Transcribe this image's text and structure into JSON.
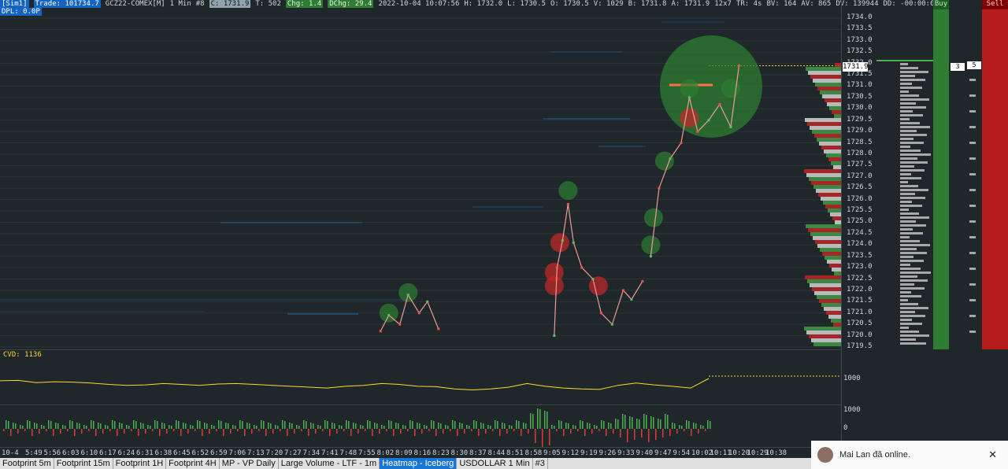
{
  "header": {
    "sim": "[Sim1]",
    "trade": "Trade: 101734.7",
    "symbol": "GCZ22-COMEX[M]",
    "interval": "1 Min",
    "n": "#8",
    "close": "C: 1731.9",
    "t": "T: 502",
    "chg": "Chg: 1.4",
    "dchg": "DChg: 29.4",
    "datetime": "2022-10-04 10:07:56",
    "high": "H: 1732.0",
    "low": "L: 1730.5",
    "open": "O: 1730.5",
    "volume": "V: 1029",
    "bid": "B: 1731.8",
    "ask": "A: 1731.9",
    "range": "12x7",
    "tr": "TR: 4s",
    "bv": "BV: 164",
    "av": "AV: 865",
    "dv": "DV: 139944",
    "dd": "DD: -00:00:00",
    "dpl": "DPL: 0.0P"
  },
  "price_axis": {
    "ticks": [
      "1734.0",
      "1733.5",
      "1733.0",
      "1732.5",
      "1732.0",
      "1731.5",
      "1731.0",
      "1730.5",
      "1730.0",
      "1729.5",
      "1729.0",
      "1728.5",
      "1728.0",
      "1727.5",
      "1727.0",
      "1726.5",
      "1726.0",
      "1725.5",
      "1725.0",
      "1724.5",
      "1724.0",
      "1723.5",
      "1723.0",
      "1722.5",
      "1722.0",
      "1721.5",
      "1721.0",
      "1720.5",
      "1720.0",
      "1719.5"
    ],
    "current": "1731.9"
  },
  "panels": {
    "buy_label": "Buy",
    "sell_label": "Sell",
    "box_a": "3",
    "box_b": "5"
  },
  "cvd": {
    "label": "CVD: 1136",
    "axis_tick": "1000"
  },
  "volume": {
    "axis_top": "1000",
    "axis_zero": "0"
  },
  "time_axis": [
    "10-4",
    "5:49",
    "5:56",
    "6:03",
    "6:10",
    "6:17",
    "6:24",
    "6:31",
    "6:38",
    "6:45",
    "6:52",
    "6:59",
    "7:06",
    "7:13",
    "7:20",
    "7:27",
    "7:34",
    "7:41",
    "7:48",
    "7:55",
    "8:02",
    "8:09",
    "8:16",
    "8:23",
    "8:30",
    "8:37",
    "8:44",
    "8:51",
    "8:58",
    "9:05",
    "9:12",
    "9:19",
    "9:26",
    "9:33",
    "9:40",
    "9:47",
    "9:54",
    "10:02",
    "10:11",
    "10:20",
    "10:29",
    "10:38"
  ],
  "tabs": [
    "Footprint 5m",
    "Footprint 15m",
    "Footprint 1H",
    "Footprint 4H",
    "MP - VP Daily",
    "Large Volume - LTF - 1m",
    "Heatmap - Iceberg",
    "USDOLLAR  1 Min",
    "#3"
  ],
  "active_tab": "Heatmap - Iceberg",
  "toast": {
    "text": "Mai Lan đã online.",
    "close": "✕"
  },
  "colors": {
    "bg": "#1f272b",
    "up": "#4caf50",
    "down": "#e53935",
    "cvd": "#fdd835"
  },
  "chart_data": {
    "type": "line",
    "price_path": [
      {
        "t": "7:55",
        "p": 1720.2
      },
      {
        "t": "7:58",
        "p": 1720.9
      },
      {
        "t": "8:02",
        "p": 1720.5
      },
      {
        "t": "8:05",
        "p": 1721.8
      },
      {
        "t": "8:09",
        "p": 1721.0
      },
      {
        "t": "8:12",
        "p": 1721.5
      },
      {
        "t": "8:16",
        "p": 1720.3
      },
      {
        "t": "8:58",
        "p": 1720.0
      },
      {
        "t": "8:59",
        "p": 1723.0
      },
      {
        "t": "9:01",
        "p": 1724.2
      },
      {
        "t": "9:03",
        "p": 1725.8
      },
      {
        "t": "9:05",
        "p": 1724.1
      },
      {
        "t": "9:08",
        "p": 1723.0
      },
      {
        "t": "9:12",
        "p": 1722.5
      },
      {
        "t": "9:15",
        "p": 1721.0
      },
      {
        "t": "9:19",
        "p": 1720.5
      },
      {
        "t": "9:23",
        "p": 1722.0
      },
      {
        "t": "9:26",
        "p": 1721.6
      },
      {
        "t": "9:30",
        "p": 1722.4
      },
      {
        "t": "9:33",
        "p": 1723.5
      },
      {
        "t": "9:36",
        "p": 1726.5
      },
      {
        "t": "9:40",
        "p": 1727.8
      },
      {
        "t": "9:44",
        "p": 1728.5
      },
      {
        "t": "9:47",
        "p": 1730.5
      },
      {
        "t": "9:50",
        "p": 1729.0
      },
      {
        "t": "9:54",
        "p": 1729.5
      },
      {
        "t": "9:58",
        "p": 1730.2
      },
      {
        "t": "10:02",
        "p": 1729.2
      },
      {
        "t": "10:05",
        "p": 1731.9
      }
    ],
    "cvd_series": [
      200,
      205,
      180,
      190,
      185,
      175,
      160,
      150,
      155,
      170,
      160,
      150,
      165,
      170,
      160,
      150,
      140,
      130,
      120,
      140,
      150,
      170,
      160,
      140,
      135,
      110,
      100,
      110,
      130,
      170,
      140,
      120,
      110,
      105,
      150,
      175,
      155,
      140,
      120,
      1136
    ],
    "bubbles": [
      {
        "t": "7:58",
        "p": 1721.0,
        "side": "buy"
      },
      {
        "t": "8:05",
        "p": 1721.9,
        "side": "buy"
      },
      {
        "t": "8:58",
        "p": 1722.2,
        "side": "sell"
      },
      {
        "t": "8:58",
        "p": 1722.8,
        "side": "sell"
      },
      {
        "t": "9:00",
        "p": 1724.1,
        "side": "sell"
      },
      {
        "t": "9:03",
        "p": 1726.4,
        "side": "buy"
      },
      {
        "t": "9:14",
        "p": 1722.2,
        "side": "sell"
      },
      {
        "t": "9:33",
        "p": 1724.0,
        "side": "buy"
      },
      {
        "t": "9:34",
        "p": 1725.2,
        "side": "buy"
      },
      {
        "t": "9:38",
        "p": 1727.7,
        "side": "buy"
      },
      {
        "t": "9:47",
        "p": 1729.6,
        "side": "sell"
      },
      {
        "t": "9:47",
        "p": 1730.9,
        "side": "buy"
      },
      {
        "t": "10:02",
        "p": 1730.9,
        "side": "buy"
      }
    ]
  }
}
